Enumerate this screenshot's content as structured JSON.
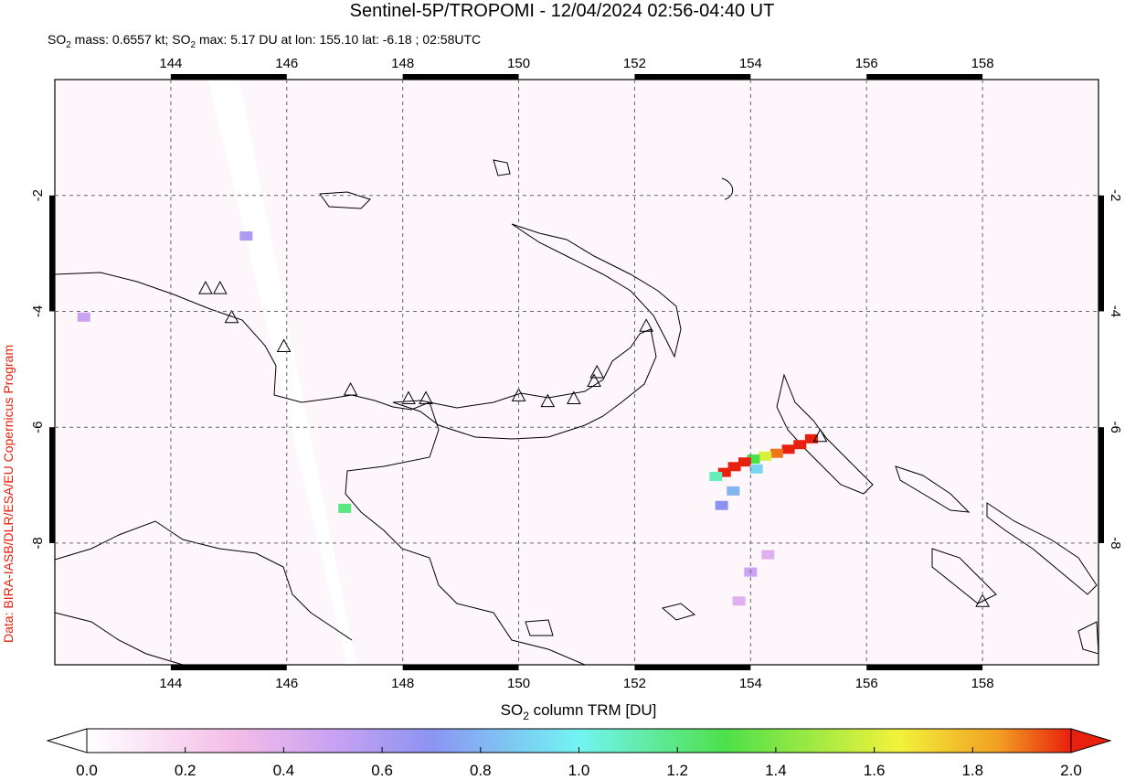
{
  "chart_data": {
    "type": "map",
    "title": "Sentinel-5P/TROPOMI - 12/04/2024 02:56-04:40 UT",
    "subtitle": [
      "SO",
      "2",
      " mass: 0.6557 kt; SO",
      "2",
      " max: 5.17 DU at lon: 155.10 lat: -6.18 ; 02:58UTC"
    ],
    "credit": "Data: BIRA-IASB/DLR/ESA/EU Copernicus Program",
    "xlim": [
      142,
      160
    ],
    "ylim": [
      -10.1,
      0
    ],
    "xticks": [
      144,
      146,
      148,
      150,
      152,
      154,
      156,
      158
    ],
    "yticks": [
      -2,
      -4,
      -6,
      -8
    ],
    "grid": true,
    "colorbar_label": [
      "SO",
      "2",
      " column TRM [DU]"
    ],
    "clim": [
      0,
      2
    ],
    "cticks": [
      {
        "value": 0,
        "label": "0.0"
      },
      0.2,
      0.4,
      0.6,
      0.8,
      {
        "value": 1,
        "label": "1.0"
      },
      1.2,
      1.4,
      1.6,
      1.8,
      {
        "value": 2,
        "label": "2.0"
      }
    ],
    "colorscale": [
      [
        0,
        "#ffffff"
      ],
      [
        0.3,
        "#f4bde8"
      ],
      [
        0.5,
        "#c9a2f2"
      ],
      [
        0.7,
        "#8c94f2"
      ],
      [
        1.0,
        "#72f4f2"
      ],
      [
        1.3,
        "#4ee04a"
      ],
      [
        1.65,
        "#f2f23c"
      ],
      [
        1.85,
        "#f2a022"
      ],
      [
        2.0,
        "#e8200e"
      ]
    ],
    "plume": [
      [
        155.05,
        -6.2,
        2.0
      ],
      [
        154.85,
        -6.3,
        2.0
      ],
      [
        154.65,
        -6.38,
        2.0
      ],
      [
        154.45,
        -6.45,
        1.9
      ],
      [
        154.25,
        -6.5,
        1.6
      ],
      [
        154.05,
        -6.55,
        1.3
      ],
      [
        153.9,
        -6.6,
        2.0
      ],
      [
        153.72,
        -6.68,
        2.0
      ],
      [
        153.55,
        -6.78,
        2.0
      ],
      [
        153.4,
        -6.85,
        1.1
      ],
      [
        154.1,
        -6.72,
        0.9
      ],
      [
        153.7,
        -7.1,
        0.8
      ],
      [
        153.5,
        -7.35,
        0.7
      ],
      [
        154.3,
        -8.2,
        0.4
      ],
      [
        154.0,
        -8.5,
        0.5
      ],
      [
        153.8,
        -9.0,
        0.4
      ],
      [
        142.5,
        -4.1,
        0.5
      ],
      [
        147.0,
        -7.4,
        1.2
      ],
      [
        145.3,
        -2.7,
        0.6
      ]
    ],
    "volcanoes": [
      [
        144.6,
        -3.6
      ],
      [
        144.85,
        -3.6
      ],
      [
        145.05,
        -4.1
      ],
      [
        145.95,
        -4.6
      ],
      [
        147.1,
        -5.35
      ],
      [
        148.1,
        -5.5
      ],
      [
        148.4,
        -5.5
      ],
      [
        150.0,
        -5.45
      ],
      [
        150.5,
        -5.55
      ],
      [
        150.95,
        -5.5
      ],
      [
        151.3,
        -5.2
      ],
      [
        151.35,
        -5.05
      ],
      [
        152.2,
        -4.25
      ],
      [
        155.2,
        -6.15
      ],
      [
        158.0,
        -9.0
      ]
    ]
  }
}
